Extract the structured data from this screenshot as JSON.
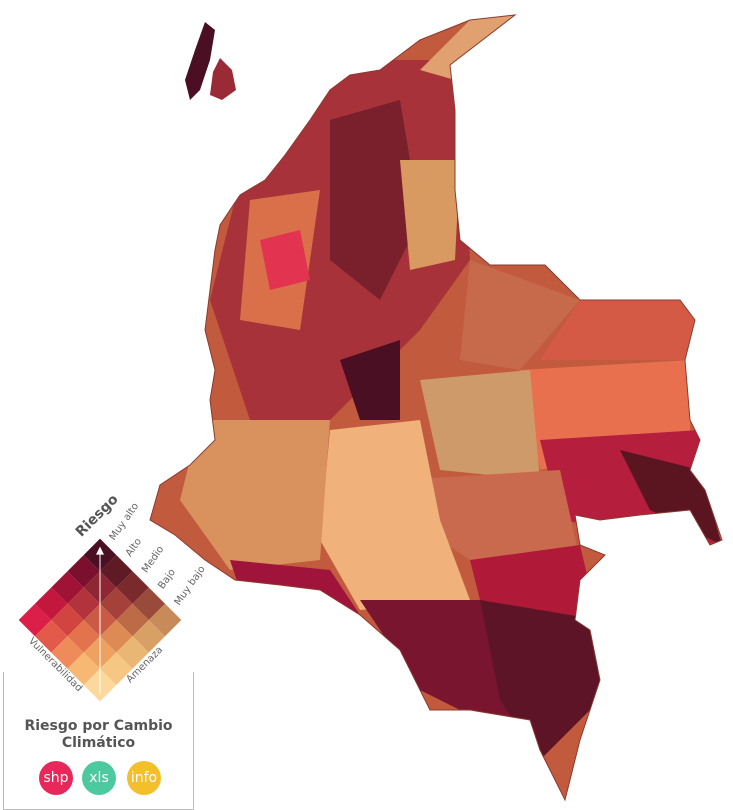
{
  "legend": {
    "title": "Riesgo",
    "levels": [
      "Muy alto",
      "Alto",
      "Medio",
      "Bajo",
      "Muy bajo"
    ],
    "y_axis": "Vulnerabilidad",
    "x_axis": "Amenaza",
    "colors": [
      [
        "#4a0f22",
        "#5e1a25",
        "#7a2a2c",
        "#9a4a3a",
        "#c98a5a"
      ],
      [
        "#7a0f2e",
        "#8c2733",
        "#a5413b",
        "#bd6a47",
        "#d9a065"
      ],
      [
        "#a01336",
        "#b3333c",
        "#c95a45",
        "#dd8a55",
        "#eab674"
      ],
      [
        "#c4173e",
        "#d2443f",
        "#e2734c",
        "#eea262",
        "#f6c783"
      ],
      [
        "#dc1f48",
        "#e35a4b",
        "#ef8b5a",
        "#f7b873",
        "#fcd89d"
      ]
    ]
  },
  "panel": {
    "title": "Riesgo por Cambio Climático"
  },
  "buttons": [
    "shp",
    "xls",
    "info"
  ]
}
